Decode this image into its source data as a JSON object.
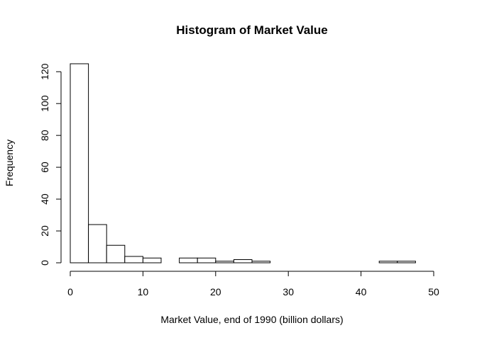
{
  "chart_data": {
    "type": "bar",
    "title": "Histogram of Market Value",
    "xlabel": "Market Value, end of 1990 (billion dollars)",
    "ylabel": "Frequency",
    "bin_width": 2.5,
    "bins": [
      {
        "start": 0,
        "end": 2.5,
        "count": 125
      },
      {
        "start": 2.5,
        "end": 5,
        "count": 24
      },
      {
        "start": 5,
        "end": 7.5,
        "count": 11
      },
      {
        "start": 7.5,
        "end": 10,
        "count": 4
      },
      {
        "start": 10,
        "end": 12.5,
        "count": 3
      },
      {
        "start": 12.5,
        "end": 15,
        "count": 0
      },
      {
        "start": 15,
        "end": 17.5,
        "count": 3
      },
      {
        "start": 17.5,
        "end": 20,
        "count": 3
      },
      {
        "start": 20,
        "end": 22.5,
        "count": 1
      },
      {
        "start": 22.5,
        "end": 25,
        "count": 2
      },
      {
        "start": 25,
        "end": 27.5,
        "count": 1
      },
      {
        "start": 27.5,
        "end": 30,
        "count": 0
      },
      {
        "start": 30,
        "end": 32.5,
        "count": 0
      },
      {
        "start": 32.5,
        "end": 35,
        "count": 0
      },
      {
        "start": 35,
        "end": 37.5,
        "count": 0
      },
      {
        "start": 37.5,
        "end": 40,
        "count": 0
      },
      {
        "start": 40,
        "end": 42.5,
        "count": 0
      },
      {
        "start": 42.5,
        "end": 45,
        "count": 1
      },
      {
        "start": 45,
        "end": 47.5,
        "count": 1
      },
      {
        "start": 47.5,
        "end": 50,
        "count": 0
      }
    ],
    "xlim": [
      0,
      50
    ],
    "ylim": [
      0,
      125
    ],
    "x_ticks": [
      0,
      10,
      20,
      30,
      40,
      50
    ],
    "y_ticks": [
      0,
      20,
      40,
      60,
      80,
      100,
      120
    ],
    "grid": false,
    "legend": "none"
  }
}
